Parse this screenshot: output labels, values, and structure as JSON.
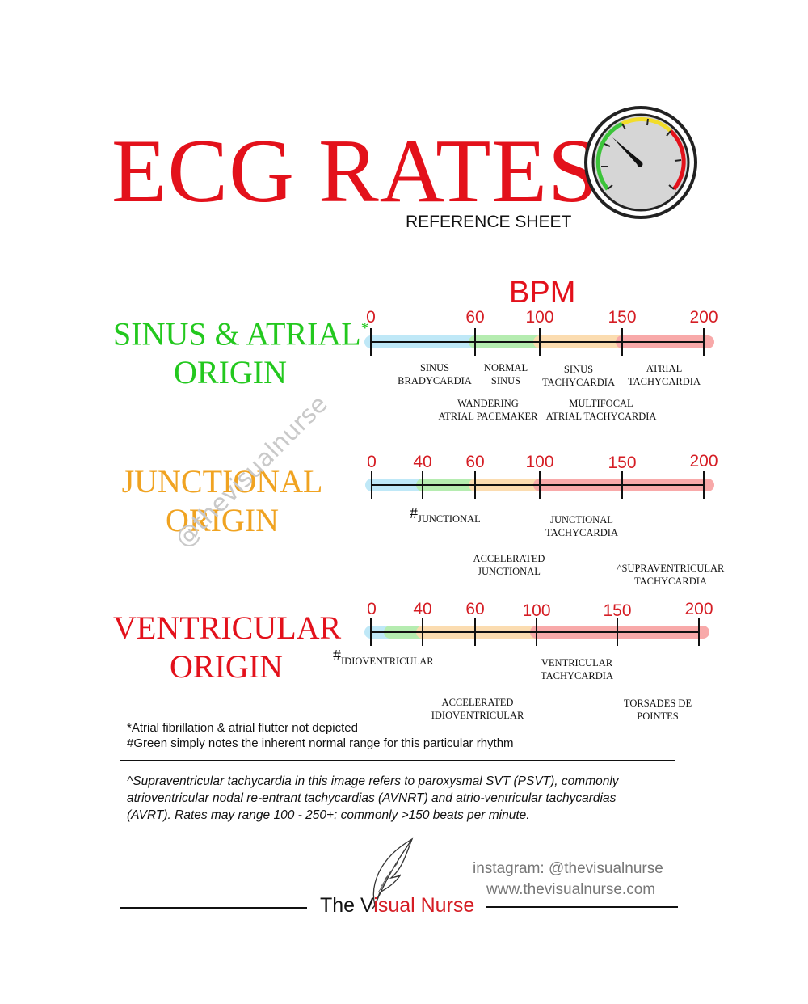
{
  "header": {
    "title": "ECG RATES",
    "subtitle": "REFERENCE SHEET",
    "bpm_label": "BPM",
    "gauge_icon": "speedometer-gauge-icon"
  },
  "colors": {
    "red": "#e3111b",
    "green": "#23c81e",
    "orange": "#f0a321",
    "band_blue": "#bfe8f7",
    "band_green": "#b5ecb0",
    "band_orange": "#fbdcb0",
    "band_red": "#f8a9a9"
  },
  "sections": [
    {
      "origin_lines": [
        "SINUS & ATRIAL",
        "ORIGIN"
      ],
      "marker": "*",
      "ticks": [
        "0",
        "60",
        "100",
        "150",
        "200"
      ],
      "rhythms": [
        {
          "lines": [
            "SINUS",
            "BRADYCARDIA"
          ]
        },
        {
          "lines": [
            "NORMAL",
            "SINUS"
          ]
        },
        {
          "lines": [
            "SINUS",
            "TACHYCARDIA"
          ]
        },
        {
          "lines": [
            "ATRIAL",
            "TACHYCARDIA"
          ]
        },
        {
          "lines": [
            "WANDERING",
            "ATRIAL PACEMAKER"
          ]
        },
        {
          "lines": [
            "MULTIFOCAL",
            "ATRIAL TACHYCARDIA"
          ]
        }
      ]
    },
    {
      "origin_lines": [
        "JUNCTIONAL",
        "ORIGIN"
      ],
      "ticks": [
        "0",
        "40",
        "60",
        "100",
        "150",
        "200"
      ],
      "rhythms": [
        {
          "hash": "#",
          "lines": [
            "JUNCTIONAL"
          ]
        },
        {
          "lines": [
            "JUNCTIONAL",
            "TACHYCARDIA"
          ]
        },
        {
          "lines": [
            "ACCELERATED",
            "JUNCTIONAL"
          ]
        },
        {
          "lines": [
            "^SUPRAVENTRICULAR",
            "TACHYCARDIA"
          ]
        }
      ]
    },
    {
      "origin_lines": [
        "VENTRICULAR",
        "ORIGIN"
      ],
      "ticks": [
        "0",
        "40",
        "60",
        "100",
        "150",
        "200"
      ],
      "rhythms": [
        {
          "hash": "#",
          "lines": [
            "IDIOVENTRICULAR"
          ]
        },
        {
          "lines": [
            "VENTRICULAR",
            "TACHYCARDIA"
          ]
        },
        {
          "lines": [
            "ACCELERATED",
            "IDIOVENTRICULAR"
          ]
        },
        {
          "lines": [
            "TORSADES DE",
            "POINTES"
          ]
        }
      ]
    }
  ],
  "watermark": "@thevisualnurse",
  "notes": {
    "asterisk": "*Atrial fibrillation & atrial flutter not depicted",
    "hash": "#Green simply notes the inherent normal range for this particular rhythm",
    "psvt": "^Supraventricular tachycardia in this image refers to paroxysmal SVT (PSVT), commonly atrioventricular nodal re-entrant tachycardias (AVNRT) and atrio-ventricular tachycardias (AVRT). Rates may range 100 - 250+; commonly >150 beats per minute."
  },
  "footer": {
    "instagram": "instagram: @thevisualnurse",
    "website": "www.thevisualnurse.com",
    "brand_prefix": "The V",
    "brand_v": "i",
    "brand_suffix": "sual Nurse",
    "logo_icon": "feather-quill-icon"
  }
}
